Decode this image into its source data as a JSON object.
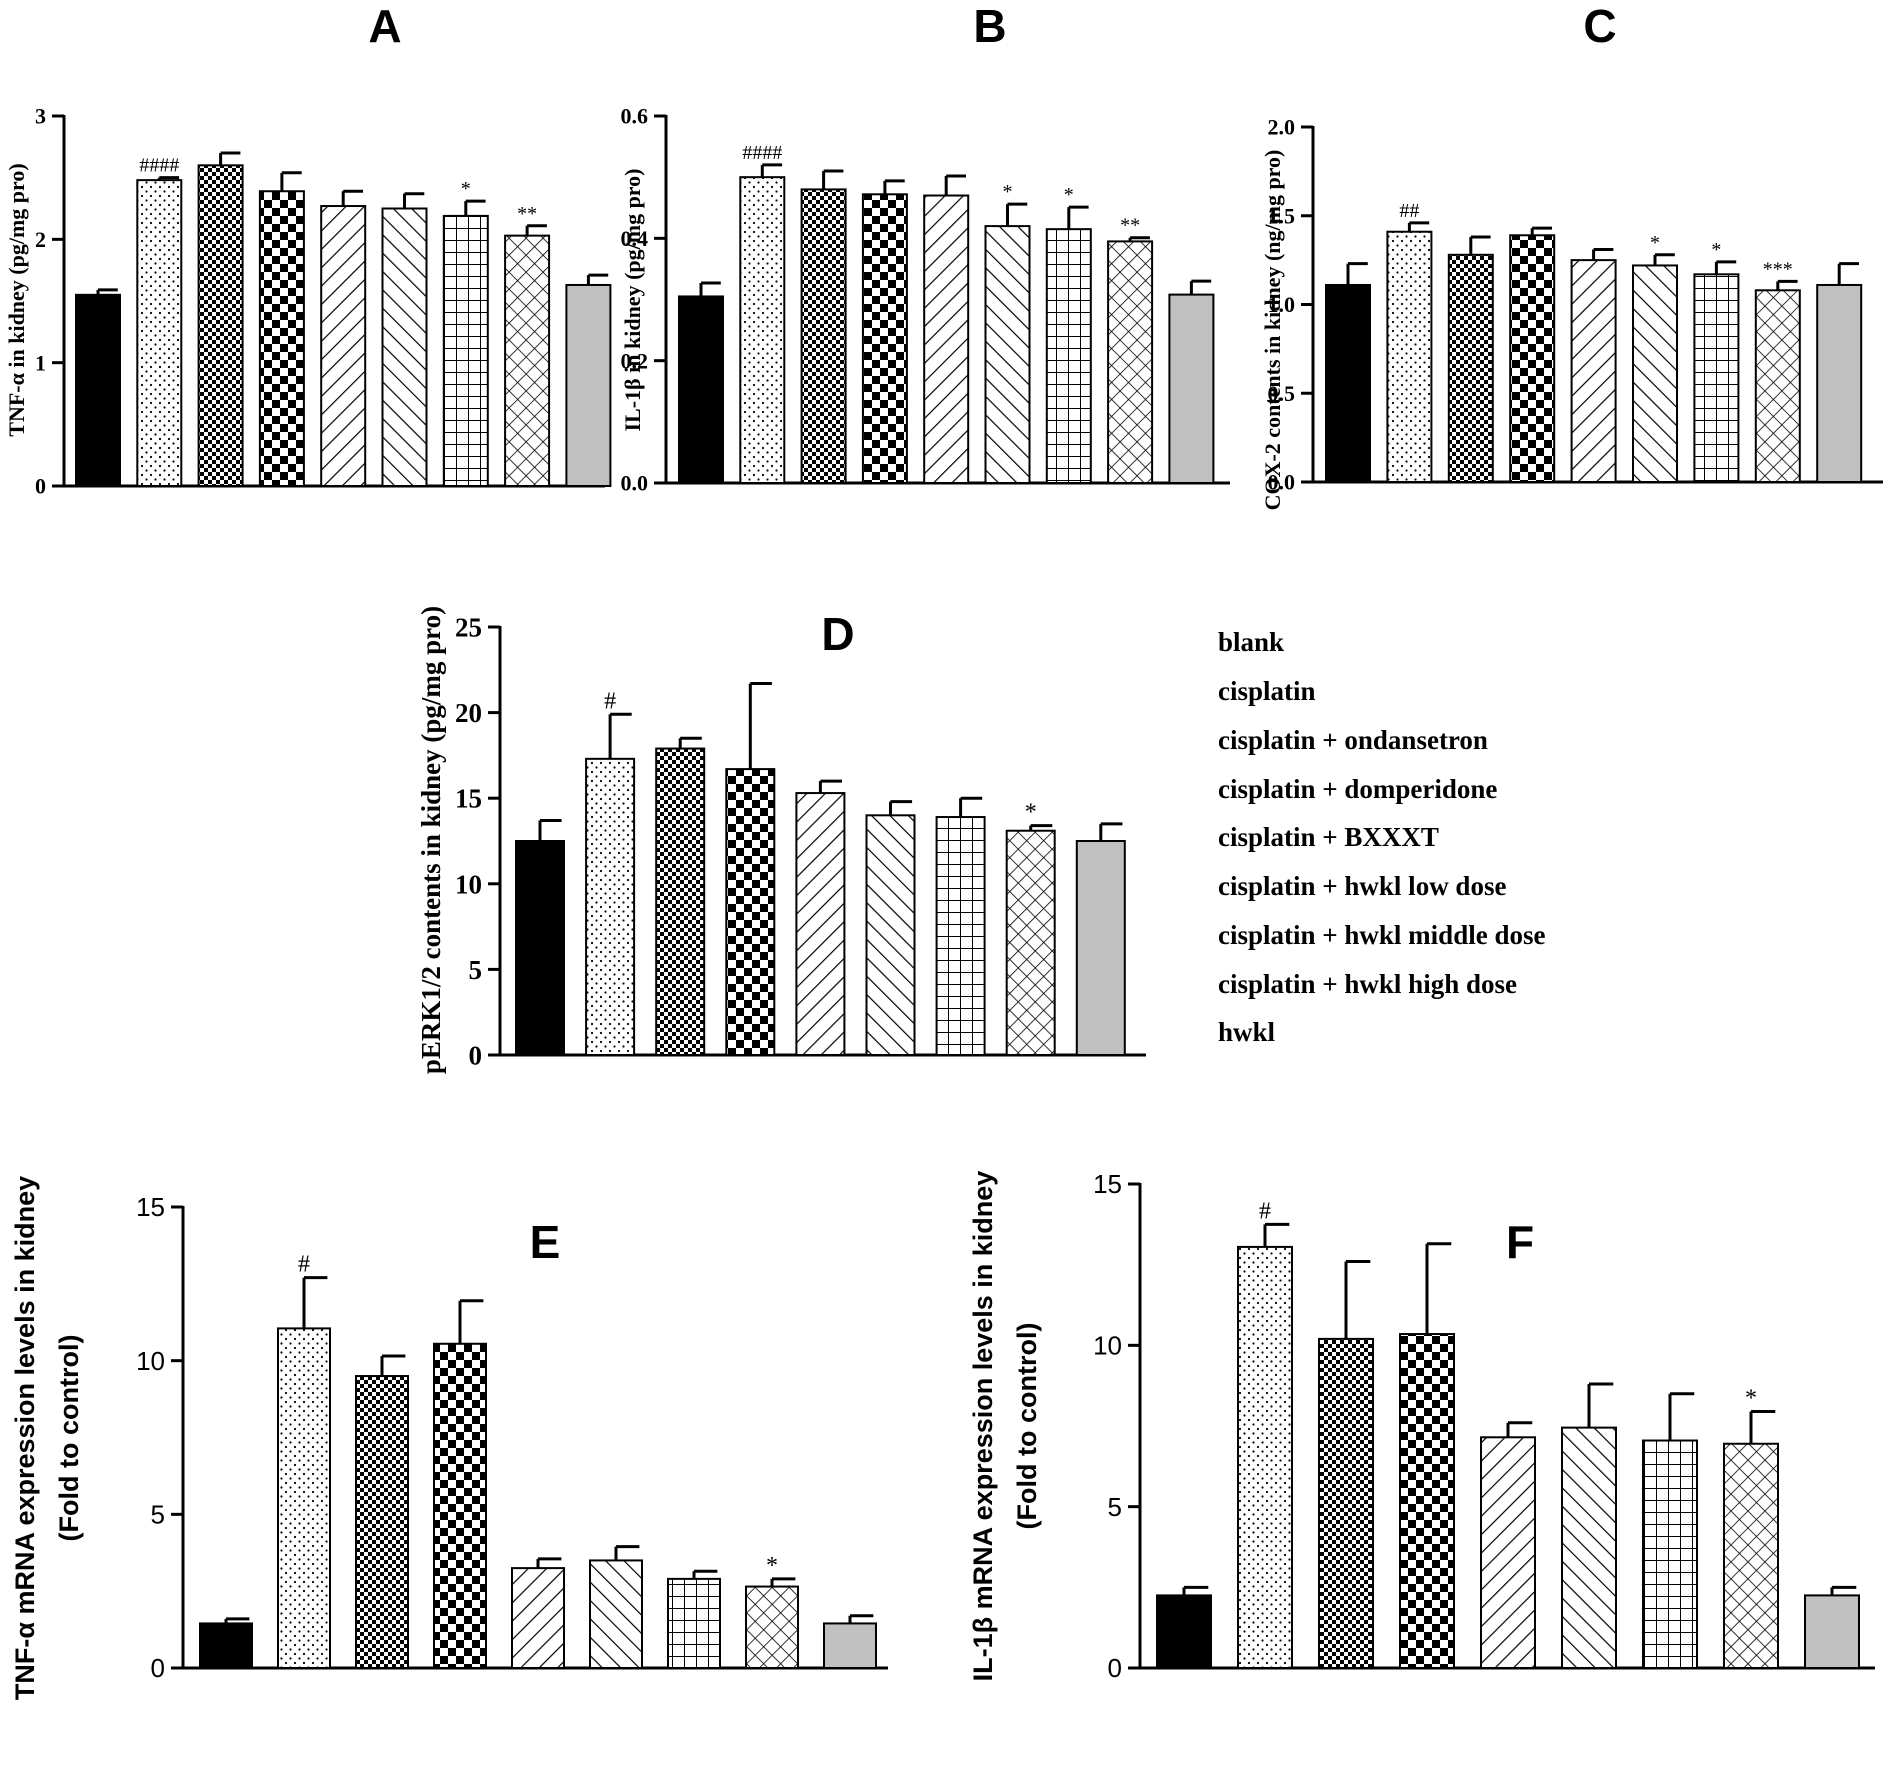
{
  "legend": {
    "items": [
      "blank",
      "cisplatin",
      "cisplatin + ondansetron",
      "cisplatin + domperidone",
      "cisplatin + BXXXT",
      "cisplatin + hwkl low dose",
      "cisplatin + hwkl middle dose",
      "cisplatin + hwkl high dose",
      "hwkl"
    ]
  },
  "pattern_names": [
    "solid-black",
    "dots",
    "fine-checker",
    "coarse-checker",
    "diag-forward",
    "diag-back",
    "grid",
    "crosshatch",
    "solid-gray"
  ],
  "colors": {
    "bar_black": "#000000",
    "bar_gray": "#c0c0c0",
    "axis": "#000000"
  },
  "chart_data": [
    {
      "panel": "A",
      "type": "bar",
      "ylabel": "TNF-α in kidney (pg/mg pro)",
      "ylim": [
        0,
        3
      ],
      "yticks": [
        "0",
        "1",
        "2",
        "3"
      ],
      "values": [
        1.55,
        2.48,
        2.6,
        2.39,
        2.27,
        2.25,
        2.19,
        2.03,
        1.63
      ],
      "errors": [
        0.04,
        0.02,
        0.1,
        0.15,
        0.12,
        0.12,
        0.12,
        0.08,
        0.08
      ],
      "significance": [
        "",
        "####",
        "",
        "",
        "",
        "",
        "*",
        "**",
        ""
      ]
    },
    {
      "panel": "B",
      "type": "bar",
      "ylabel": "IL-1β in kidney (pg/mg pro)",
      "ylim": [
        0,
        0.6
      ],
      "yticks": [
        "0.0",
        "0.2",
        "0.4",
        "0.6"
      ],
      "values": [
        0.305,
        0.5,
        0.48,
        0.472,
        0.47,
        0.42,
        0.415,
        0.395,
        0.308
      ],
      "errors": [
        0.022,
        0.02,
        0.03,
        0.022,
        0.032,
        0.036,
        0.036,
        0.006,
        0.022
      ],
      "significance": [
        "",
        "####",
        "",
        "",
        "",
        "*",
        "*",
        "**",
        ""
      ]
    },
    {
      "panel": "C",
      "type": "bar",
      "ylabel": "COX-2 contents in kidney (ng/mg pro)",
      "ylim": [
        0,
        2.0
      ],
      "yticks": [
        "0.0",
        "0.5",
        "1.0",
        "1.5",
        "2.0"
      ],
      "values": [
        1.11,
        1.41,
        1.28,
        1.39,
        1.25,
        1.22,
        1.17,
        1.08,
        1.11
      ],
      "errors": [
        0.12,
        0.05,
        0.1,
        0.04,
        0.06,
        0.06,
        0.07,
        0.05,
        0.12
      ],
      "significance": [
        "",
        "##",
        "",
        "",
        "",
        "*",
        "*",
        "***",
        ""
      ]
    },
    {
      "panel": "D",
      "type": "bar",
      "ylabel": "pERK1/2 contents in kidney (pg/mg pro)",
      "ylim": [
        0,
        25
      ],
      "yticks": [
        "0",
        "5",
        "10",
        "15",
        "20",
        "25"
      ],
      "values": [
        12.5,
        17.3,
        17.9,
        16.7,
        15.3,
        14.0,
        13.9,
        13.1,
        12.5
      ],
      "errors": [
        1.2,
        2.6,
        0.6,
        5.0,
        0.7,
        0.8,
        1.1,
        0.3,
        1.0
      ],
      "significance": [
        "",
        "#",
        "",
        "",
        "",
        "",
        "",
        "*",
        ""
      ]
    },
    {
      "panel": "E",
      "type": "bar",
      "ylabel": "TNF-α mRNA expression levels in kidney",
      "ylabel2": "(Fold to control)",
      "ylim": [
        0,
        15
      ],
      "yticks": [
        "0",
        "5",
        "10",
        "15"
      ],
      "values": [
        1.45,
        11.05,
        9.5,
        10.55,
        3.25,
        3.5,
        2.9,
        2.65,
        1.45
      ],
      "errors": [
        0.15,
        1.65,
        0.65,
        1.4,
        0.3,
        0.45,
        0.25,
        0.25,
        0.25
      ],
      "significance": [
        "",
        "#",
        "",
        "",
        "",
        "",
        "",
        "*",
        ""
      ]
    },
    {
      "panel": "F",
      "type": "bar",
      "ylabel": "IL-1β mRNA expression levels in kidney",
      "ylabel2": "(Fold to control)",
      "ylim": [
        0,
        15
      ],
      "yticks": [
        "0",
        "5",
        "10",
        "15"
      ],
      "values": [
        2.25,
        13.05,
        10.2,
        10.35,
        7.15,
        7.45,
        7.05,
        6.95,
        2.25
      ],
      "errors": [
        0.25,
        0.7,
        2.4,
        2.8,
        0.45,
        1.35,
        1.45,
        1.0,
        0.25
      ],
      "significance": [
        "",
        "#",
        "",
        "",
        "",
        "",
        "",
        "*",
        ""
      ]
    }
  ]
}
